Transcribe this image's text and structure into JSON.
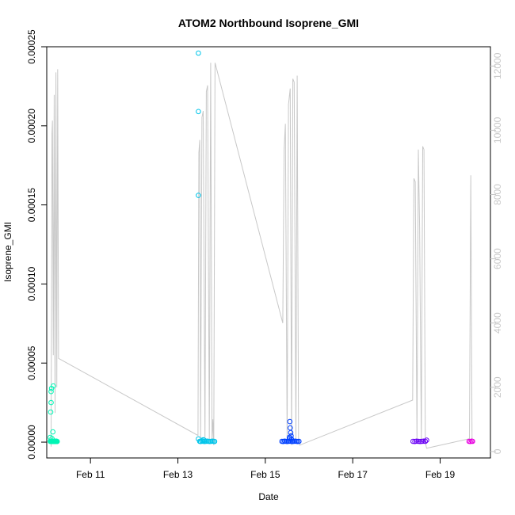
{
  "chart_data": {
    "type": "scatter",
    "title": "ATOM2 Northbound Isoprene_GMI",
    "xlabel": "Date",
    "ylabel": "Isoprene_GMI",
    "x_axis": {
      "unit": "days in February",
      "range": [
        10.0,
        20.15
      ],
      "ticks": [
        {
          "value": 11,
          "label": "Feb 11"
        },
        {
          "value": 13,
          "label": "Feb 13"
        },
        {
          "value": 15,
          "label": "Feb 15"
        },
        {
          "value": 17,
          "label": "Feb 17"
        },
        {
          "value": 19,
          "label": "Feb 19"
        }
      ]
    },
    "y_axis": {
      "range": [
        -1e-05,
        0.00025
      ],
      "ticks": [
        "0.00000",
        "0.00005",
        "0.00010",
        "0.00015",
        "0.00020",
        "0.00025"
      ]
    },
    "y2_axis": {
      "color": "#c8c8c8",
      "range": [
        -200,
        12600
      ],
      "ticks": [
        "0",
        "2000",
        "4000",
        "6000",
        "8000",
        "10000",
        "12000"
      ]
    },
    "altitude_line": {
      "color": "#c8c8c8",
      "x": [
        10.1,
        10.12,
        10.13,
        10.15,
        10.17,
        10.19,
        10.21,
        10.23,
        10.25,
        10.27,
        13.46,
        13.48,
        13.5,
        13.52,
        13.55,
        13.58,
        13.62,
        13.65,
        13.68,
        13.72,
        13.75,
        13.78,
        13.8,
        13.82,
        13.85,
        15.4,
        15.43,
        15.46,
        15.5,
        15.53,
        15.57,
        15.6,
        15.63,
        15.66,
        15.7,
        15.73,
        15.76,
        15.79,
        18.37,
        18.4,
        18.43,
        18.47,
        18.5,
        18.53,
        18.57,
        18.6,
        18.63,
        18.66,
        18.69,
        19.67,
        19.7,
        19.73
      ],
      "y": [
        150,
        9900,
        10300,
        3000,
        11100,
        1200,
        11800,
        2000,
        11900,
        2900,
        500,
        9300,
        9700,
        400,
        10400,
        10600,
        300,
        11200,
        11400,
        300,
        12100,
        300,
        1000,
        200,
        12100,
        4000,
        9400,
        10200,
        300,
        10800,
        11300,
        200,
        11600,
        11500,
        300,
        11700,
        300,
        200,
        1600,
        8500,
        8400,
        300,
        9400,
        7000,
        300,
        9500,
        9400,
        300,
        100,
        400,
        8600,
        300
      ]
    },
    "series": [
      {
        "color": "#00f5b5",
        "x": [
          10.08,
          10.09,
          10.1,
          10.11,
          10.12,
          10.13,
          10.14,
          10.15,
          10.16,
          10.17,
          10.18,
          10.19,
          10.2,
          10.21,
          10.22,
          10.23,
          10.24,
          10.1,
          10.11,
          10.1,
          10.09,
          10.08,
          10.12,
          10.14,
          10.15
        ],
        "y": [
          5e-07,
          4e-07,
          6e-07,
          5e-07,
          4e-07,
          5e-07,
          6e-07,
          5e-07,
          4e-07,
          5e-07,
          6e-07,
          5e-07,
          4e-07,
          5e-07,
          6e-07,
          5e-07,
          4e-07,
          3.2e-05,
          3.4e-05,
          2.5e-05,
          1.9e-05,
          3e-06,
          2.2e-06,
          6.5e-06,
          3.55e-05
        ]
      },
      {
        "color": "#00c5ea",
        "x": [
          13.5,
          13.52,
          13.55,
          13.58,
          13.61,
          13.64,
          13.67,
          13.7,
          13.73,
          13.76,
          13.79,
          13.82,
          13.84,
          13.47,
          13.47,
          13.47,
          13.47,
          13.58,
          13.6
        ],
        "y": [
          5e-07,
          4e-07,
          6e-07,
          5e-07,
          4e-07,
          5e-07,
          6e-07,
          5e-07,
          4e-07,
          5e-07,
          6e-07,
          5e-07,
          4e-07,
          0.000246,
          0.000209,
          0.000156,
          2e-06,
          1.5e-06,
          1.2e-06
        ]
      },
      {
        "color": "#0040ff",
        "x": [
          15.38,
          15.41,
          15.44,
          15.47,
          15.5,
          15.53,
          15.56,
          15.59,
          15.62,
          15.65,
          15.68,
          15.71,
          15.74,
          15.77,
          15.56,
          15.57,
          15.58,
          15.59,
          15.55,
          15.57,
          15.6
        ],
        "y": [
          5e-07,
          4e-07,
          6e-07,
          5e-07,
          4e-07,
          5e-07,
          6e-07,
          5e-07,
          4e-07,
          5e-07,
          6e-07,
          5e-07,
          4e-07,
          5e-07,
          1.3e-05,
          9e-06,
          6e-06,
          4e-06,
          3e-06,
          2.5e-06,
          1.8e-06
        ]
      },
      {
        "color": "#6a00f5",
        "x": [
          18.38,
          18.42,
          18.46,
          18.5,
          18.54,
          18.58,
          18.62,
          18.66,
          18.69
        ],
        "y": [
          5e-07,
          4e-07,
          6e-07,
          5e-07,
          4e-07,
          5e-07,
          6e-07,
          5e-07,
          1.2e-06
        ]
      },
      {
        "color": "#e800e0",
        "x": [
          19.66,
          19.69,
          19.72,
          19.74
        ],
        "y": [
          5e-07,
          4e-07,
          6e-07,
          5e-07
        ]
      }
    ]
  }
}
